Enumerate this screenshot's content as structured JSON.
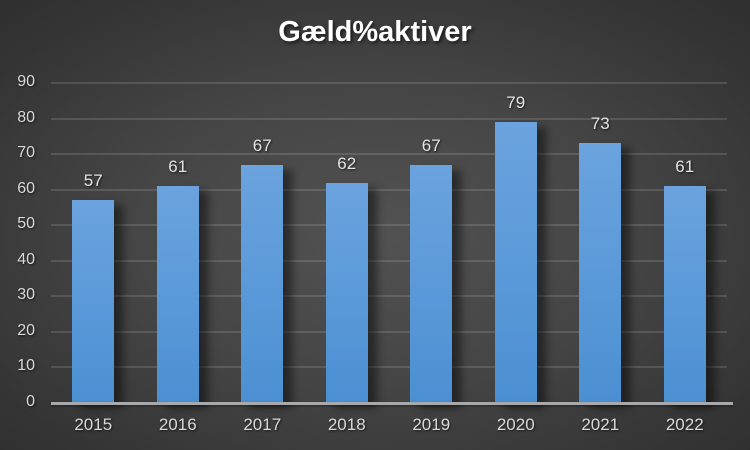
{
  "chart_data": {
    "type": "bar",
    "title": "Gæld%aktiver",
    "categories": [
      "2015",
      "2016",
      "2017",
      "2018",
      "2019",
      "2020",
      "2021",
      "2022"
    ],
    "values": [
      57,
      61,
      67,
      62,
      67,
      79,
      73,
      61
    ],
    "xlabel": "",
    "ylabel": "",
    "ylim": [
      0,
      90
    ],
    "yticks": [
      0,
      10,
      20,
      30,
      40,
      50,
      60,
      70,
      80,
      90
    ],
    "grid": true,
    "legend_position": "none",
    "data_labels_shown": true,
    "colors": {
      "background_center": "#515151",
      "background_edge": "#242424",
      "bar_top": "#6ba3de",
      "bar_bottom": "#4b90d3",
      "gridline": "rgba(255,255,255,0.13)",
      "axis_line": "#a8a9aa",
      "tick_label": "#d9d9d9",
      "data_label": "#e3e3e3",
      "title": "#ffffff"
    }
  }
}
